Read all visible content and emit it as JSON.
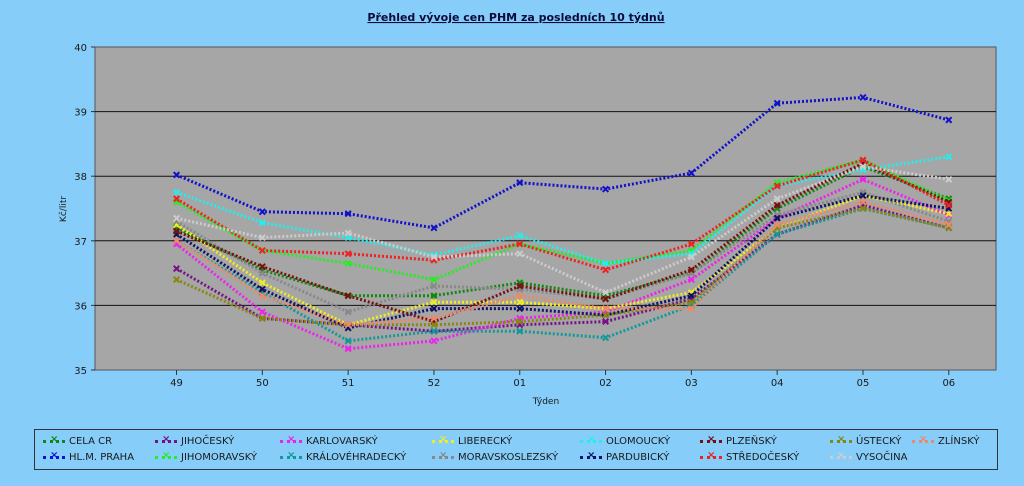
{
  "chart_data": {
    "type": "line",
    "title": "Přehled vývoje cen PHM za posledních 10 týdnů",
    "xlabel": "Týden",
    "ylabel": "Kč/litr",
    "ylim": [
      35,
      40
    ],
    "yticks": [
      "35",
      "36",
      "37",
      "38",
      "39",
      "40"
    ],
    "categories": [
      "49",
      "50",
      "51",
      "52",
      "01",
      "02",
      "03",
      "04",
      "05",
      "06"
    ],
    "grid": true,
    "legend_position": "bottom",
    "series": [
      {
        "name": "CELA CR",
        "color": "#118811",
        "values": [
          37.2,
          36.55,
          36.15,
          36.15,
          36.35,
          36.15,
          36.5,
          37.5,
          38.15,
          37.65
        ]
      },
      {
        "name": "HL.M. PRAHA",
        "color": "#1111cc",
        "values": [
          38.02,
          37.45,
          37.42,
          37.2,
          37.9,
          37.8,
          38.05,
          39.13,
          39.22,
          38.87
        ]
      },
      {
        "name": "JIHOČESKÝ",
        "color": "#771188",
        "values": [
          36.57,
          35.8,
          35.7,
          35.6,
          35.7,
          35.75,
          36.1,
          37.1,
          37.55,
          37.2
        ]
      },
      {
        "name": "JIHOMORAVSKÝ",
        "color": "#22ee22",
        "values": [
          37.6,
          36.85,
          36.65,
          36.4,
          36.95,
          36.65,
          36.85,
          37.9,
          38.25,
          37.62
        ]
      },
      {
        "name": "KARLOVARSKÝ",
        "color": "#ee22ee",
        "values": [
          36.95,
          35.9,
          35.33,
          35.45,
          35.8,
          35.9,
          36.4,
          37.35,
          37.95,
          37.4
        ]
      },
      {
        "name": "KRÁLOVÉHRADECKÝ",
        "color": "#119999",
        "values": [
          37.0,
          36.2,
          35.45,
          35.6,
          35.6,
          35.5,
          36.0,
          37.1,
          37.5,
          37.2
        ]
      },
      {
        "name": "LIBERECKÝ",
        "color": "#eeee22",
        "values": [
          37.25,
          36.35,
          35.7,
          36.05,
          36.05,
          35.95,
          36.2,
          37.2,
          37.7,
          37.42
        ]
      },
      {
        "name": "MORAVSKOSLEZSKÝ",
        "color": "#888888",
        "values": [
          37.3,
          36.5,
          35.9,
          36.3,
          36.25,
          36.1,
          36.5,
          37.4,
          37.75,
          37.3
        ]
      },
      {
        "name": "OLOMOUCKÝ",
        "color": "#22eeee",
        "values": [
          37.75,
          37.28,
          37.05,
          36.78,
          37.08,
          36.65,
          36.8,
          37.85,
          38.1,
          38.3
        ]
      },
      {
        "name": "PARDUBICKÝ",
        "color": "#111166",
        "values": [
          37.1,
          36.25,
          35.65,
          35.95,
          35.95,
          35.85,
          36.15,
          37.35,
          37.7,
          37.5
        ]
      },
      {
        "name": "PLZEŇSKÝ",
        "color": "#771111",
        "values": [
          37.15,
          36.6,
          36.15,
          35.75,
          36.3,
          36.1,
          36.55,
          37.55,
          38.2,
          37.6
        ]
      },
      {
        "name": "STŘEDOČESKÝ",
        "color": "#ee2222",
        "values": [
          37.65,
          36.85,
          36.8,
          36.7,
          36.95,
          36.55,
          36.95,
          37.85,
          38.25,
          37.55
        ]
      },
      {
        "name": "ÚSTECKÝ",
        "color": "#888811",
        "values": [
          36.4,
          35.8,
          35.7,
          35.7,
          35.75,
          35.85,
          36.05,
          37.2,
          37.5,
          37.2
        ]
      },
      {
        "name": "VYSOČINA",
        "color": "#cccccc",
        "values": [
          37.35,
          37.05,
          37.12,
          36.75,
          36.8,
          36.2,
          36.75,
          37.65,
          38.15,
          37.95
        ]
      },
      {
        "name": "ZLÍNSKÝ",
        "color": "#ee8866",
        "values": [
          37.0,
          36.15,
          35.7,
          35.8,
          36.15,
          35.95,
          35.95,
          37.25,
          37.6,
          37.25
        ]
      }
    ]
  }
}
